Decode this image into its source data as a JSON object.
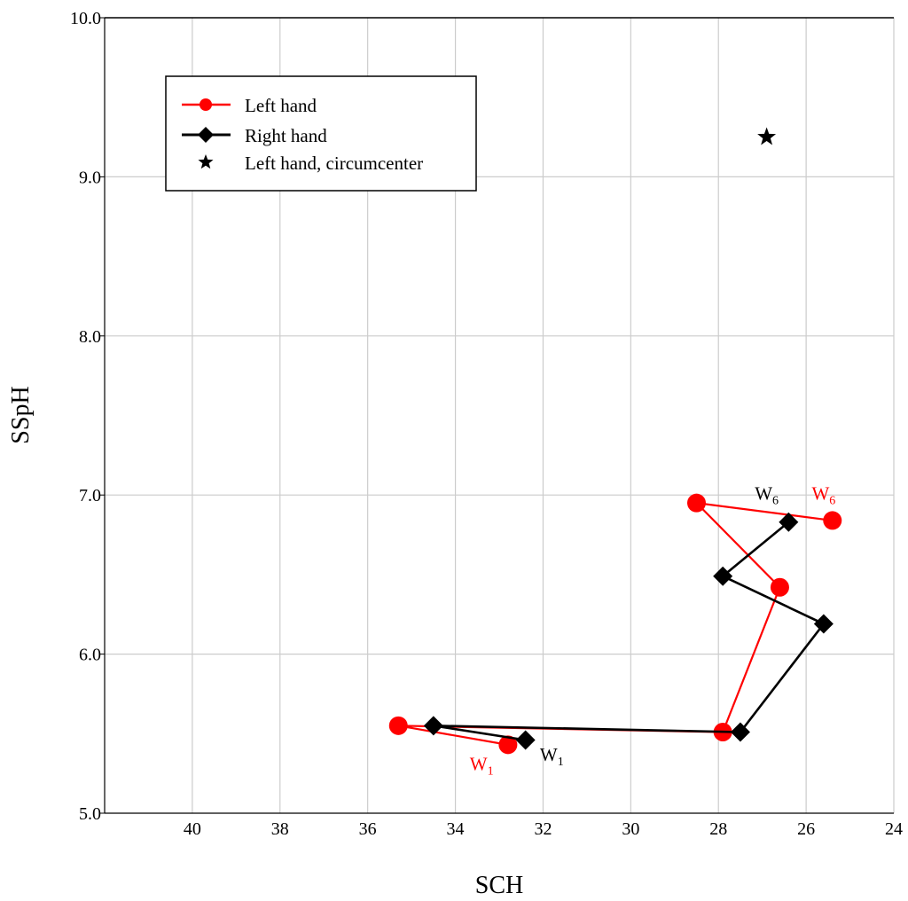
{
  "chart_data": {
    "type": "line",
    "title": "",
    "xlabel": "SCH",
    "ylabel": "SSpH",
    "xlim": [
      42,
      24
    ],
    "ylim": [
      5.0,
      10.0
    ],
    "xticks": [
      "40",
      "38",
      "36",
      "34",
      "32",
      "30",
      "28",
      "26",
      "24"
    ],
    "xtick_values": [
      40,
      38,
      36,
      34,
      32,
      30,
      28,
      26,
      24
    ],
    "yticks": [
      "5.0",
      "6.0",
      "7.0",
      "8.0",
      "9.0",
      "10.0"
    ],
    "ytick_values": [
      5.0,
      6.0,
      7.0,
      8.0,
      9.0,
      10.0
    ],
    "grid": true,
    "legend_position": "top-left",
    "series": [
      {
        "name": "Left hand",
        "color": "#ff0000",
        "marker": "circle",
        "points": [
          {
            "x": 32.8,
            "y": 5.43
          },
          {
            "x": 35.3,
            "y": 5.55
          },
          {
            "x": 27.9,
            "y": 5.51
          },
          {
            "x": 26.6,
            "y": 6.42
          },
          {
            "x": 28.5,
            "y": 6.95
          },
          {
            "x": 25.4,
            "y": 6.84
          }
        ]
      },
      {
        "name": "Right hand",
        "color": "#000000",
        "marker": "diamond",
        "points": [
          {
            "x": 32.4,
            "y": 5.46
          },
          {
            "x": 34.5,
            "y": 5.55
          },
          {
            "x": 27.5,
            "y": 5.51
          },
          {
            "x": 25.6,
            "y": 6.19
          },
          {
            "x": 27.9,
            "y": 6.49
          },
          {
            "x": 26.4,
            "y": 6.83
          }
        ]
      },
      {
        "name": "Left hand, circumcenter",
        "color": "#000000",
        "marker": "star",
        "points": [
          {
            "x": 26.9,
            "y": 9.25
          }
        ]
      }
    ],
    "annotations": [
      {
        "text": "W",
        "sub": "1",
        "color": "#ff0000",
        "x": 33.4,
        "y": 5.27
      },
      {
        "text": "W",
        "sub": "1",
        "color": "#000000",
        "x": 31.8,
        "y": 5.33
      },
      {
        "text": "W",
        "sub": "6",
        "color": "#000000",
        "x": 26.9,
        "y": 6.97
      },
      {
        "text": "W",
        "sub": "6",
        "color": "#ff0000",
        "x": 25.6,
        "y": 6.97
      }
    ]
  }
}
